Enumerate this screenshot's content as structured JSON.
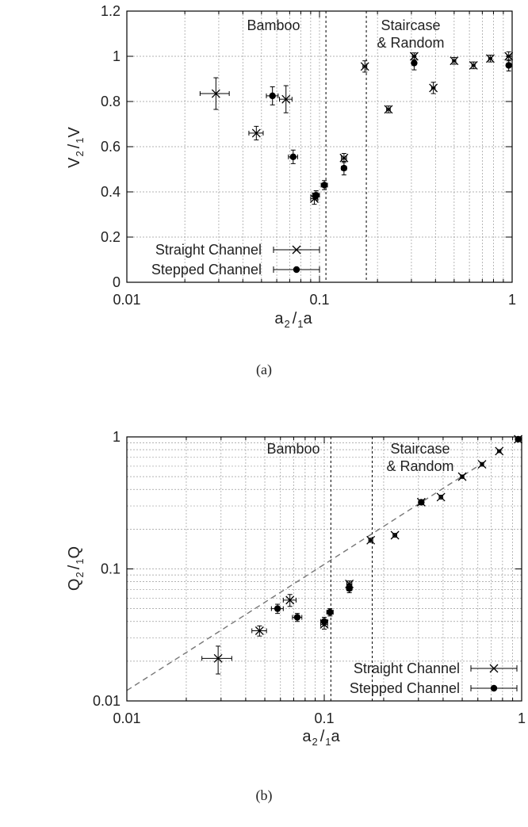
{
  "chart_data": [
    {
      "type": "scatter",
      "panel_label": "(a)",
      "xlabel_main": "a",
      "xlabel_sub1": "2",
      "xlabel_mid": "/",
      "xlabel_sub2": "1",
      "xlabel_tail": "a",
      "ylabel_main": "V",
      "ylabel_sub1": "2",
      "ylabel_mid": "/",
      "ylabel_sub2": "1",
      "ylabel_tail": "V",
      "x_scale": "log",
      "y_scale": "linear",
      "xlim": [
        0.01,
        1
      ],
      "ylim": [
        0,
        1.2
      ],
      "x_ticks": [
        0.01,
        0.1,
        1
      ],
      "x_tick_labels": [
        "0.01",
        "0.1",
        "1"
      ],
      "y_ticks": [
        0,
        0.2,
        0.4,
        0.6,
        0.8,
        1,
        1.2
      ],
      "y_tick_labels": [
        "0",
        "0.2",
        "0.4",
        "0.6",
        "0.8",
        "1",
        "1.2"
      ],
      "grid": true,
      "legend_position": "bottom-left",
      "regions": [
        {
          "label_lines": [
            "Bamboo"
          ],
          "x_boundary": 0.108
        },
        {
          "label_lines": [
            "Staircase",
            "& Random"
          ],
          "x_boundary": 0.175
        }
      ],
      "series": [
        {
          "name": "Straight Channel",
          "marker": "x",
          "points": [
            {
              "x": 0.029,
              "y": 0.835,
              "xerr": 0.005,
              "yerr": 0.07
            },
            {
              "x": 0.047,
              "y": 0.66,
              "xerr": 0.004,
              "yerr": 0.03
            },
            {
              "x": 0.067,
              "y": 0.81,
              "xerr": 0.005,
              "yerr": 0.06
            },
            {
              "x": 0.094,
              "y": 0.37,
              "xerr": 0.004,
              "yerr": 0.025
            },
            {
              "x": 0.134,
              "y": 0.55,
              "xerr": 0.004,
              "yerr": 0.02
            },
            {
              "x": 0.172,
              "y": 0.955,
              "xerr": 0.004,
              "yerr": 0.025
            },
            {
              "x": 0.228,
              "y": 0.765,
              "xerr": 0.005,
              "yerr": 0.015
            },
            {
              "x": 0.31,
              "y": 1.0,
              "xerr": 0.006,
              "yerr": 0.015
            },
            {
              "x": 0.39,
              "y": 0.86,
              "xerr": 0.008,
              "yerr": 0.025
            },
            {
              "x": 0.5,
              "y": 0.98,
              "xerr": 0.01,
              "yerr": 0.015
            },
            {
              "x": 0.63,
              "y": 0.96,
              "xerr": 0.012,
              "yerr": 0.015
            },
            {
              "x": 0.77,
              "y": 0.99,
              "xerr": 0.015,
              "yerr": 0.015
            },
            {
              "x": 0.96,
              "y": 1.0,
              "xerr": 0.02,
              "yerr": 0.02
            }
          ]
        },
        {
          "name": "Stepped Channel",
          "marker": "filled-circle",
          "points": [
            {
              "x": 0.057,
              "y": 0.825,
              "xerr": 0.004,
              "yerr": 0.04
            },
            {
              "x": 0.073,
              "y": 0.555,
              "xerr": 0.004,
              "yerr": 0.03
            },
            {
              "x": 0.096,
              "y": 0.385,
              "xerr": 0.004,
              "yerr": 0.02
            },
            {
              "x": 0.106,
              "y": 0.43,
              "xerr": 0.004,
              "yerr": 0.02
            },
            {
              "x": 0.134,
              "y": 0.505,
              "xerr": 0.004,
              "yerr": 0.03
            },
            {
              "x": 0.31,
              "y": 0.97,
              "xerr": 0.006,
              "yerr": 0.03
            },
            {
              "x": 0.96,
              "y": 0.96,
              "xerr": 0.02,
              "yerr": 0.025
            }
          ]
        }
      ]
    },
    {
      "type": "scatter",
      "panel_label": "(b)",
      "xlabel_main": "a",
      "xlabel_sub1": "2",
      "xlabel_mid": "/",
      "xlabel_sub2": "1",
      "xlabel_tail": "a",
      "ylabel_main": "Q",
      "ylabel_sub1": "2",
      "ylabel_mid": "/",
      "ylabel_sub2": "1",
      "ylabel_tail": "Q",
      "x_scale": "log",
      "y_scale": "log",
      "xlim": [
        0.01,
        1
      ],
      "ylim": [
        0.01,
        1
      ],
      "x_ticks": [
        0.01,
        0.1,
        1
      ],
      "x_tick_labels": [
        "0.01",
        "0.1",
        "1"
      ],
      "y_ticks": [
        0.01,
        0.1,
        1
      ],
      "y_tick_labels": [
        "0.01",
        "0.1",
        "1"
      ],
      "grid": true,
      "legend_position": "bottom-right",
      "reference_line": {
        "style": "dashed",
        "from": [
          0.01,
          0.012
        ],
        "to": [
          0.6,
          0.6
        ]
      },
      "regions": [
        {
          "label_lines": [
            "Bamboo"
          ],
          "x_boundary": 0.108
        },
        {
          "label_lines": [
            "Staircase",
            "& Random"
          ],
          "x_boundary": 0.175
        }
      ],
      "series": [
        {
          "name": "Straight Channel",
          "marker": "x",
          "points": [
            {
              "x": 0.029,
              "y": 0.021,
              "xerr": 0.005,
              "yerr": 0.005
            },
            {
              "x": 0.047,
              "y": 0.034,
              "xerr": 0.004,
              "yerr": 0.003
            },
            {
              "x": 0.067,
              "y": 0.058,
              "xerr": 0.005,
              "yerr": 0.006
            },
            {
              "x": 0.1,
              "y": 0.038,
              "xerr": 0.004,
              "yerr": 0.003
            },
            {
              "x": 0.134,
              "y": 0.077,
              "xerr": 0.004,
              "yerr": 0.004
            },
            {
              "x": 0.172,
              "y": 0.165,
              "xerr": 0.004,
              "yerr": 0.006
            },
            {
              "x": 0.228,
              "y": 0.18,
              "xerr": 0.005,
              "yerr": 0.006
            },
            {
              "x": 0.31,
              "y": 0.32,
              "xerr": 0.006,
              "yerr": 0.01
            },
            {
              "x": 0.39,
              "y": 0.35,
              "xerr": 0.008,
              "yerr": 0.012
            },
            {
              "x": 0.5,
              "y": 0.5,
              "xerr": 0.01,
              "yerr": 0.015
            },
            {
              "x": 0.63,
              "y": 0.62,
              "xerr": 0.012,
              "yerr": 0.02
            },
            {
              "x": 0.77,
              "y": 0.78,
              "xerr": 0.015,
              "yerr": 0.02
            },
            {
              "x": 0.96,
              "y": 0.96,
              "xerr": 0.02,
              "yerr": 0.02
            }
          ]
        },
        {
          "name": "Stepped Channel",
          "marker": "filled-circle",
          "points": [
            {
              "x": 0.058,
              "y": 0.05,
              "xerr": 0.004,
              "yerr": 0.004
            },
            {
              "x": 0.073,
              "y": 0.043,
              "xerr": 0.004,
              "yerr": 0.003
            },
            {
              "x": 0.1,
              "y": 0.04,
              "xerr": 0.004,
              "yerr": 0.003
            },
            {
              "x": 0.107,
              "y": 0.047,
              "xerr": 0.004,
              "yerr": 0.003
            },
            {
              "x": 0.134,
              "y": 0.071,
              "xerr": 0.004,
              "yerr": 0.005
            },
            {
              "x": 0.31,
              "y": 0.32,
              "xerr": 0.006,
              "yerr": 0.01
            },
            {
              "x": 0.96,
              "y": 0.96,
              "xerr": 0.02,
              "yerr": 0.02
            }
          ]
        }
      ]
    }
  ]
}
